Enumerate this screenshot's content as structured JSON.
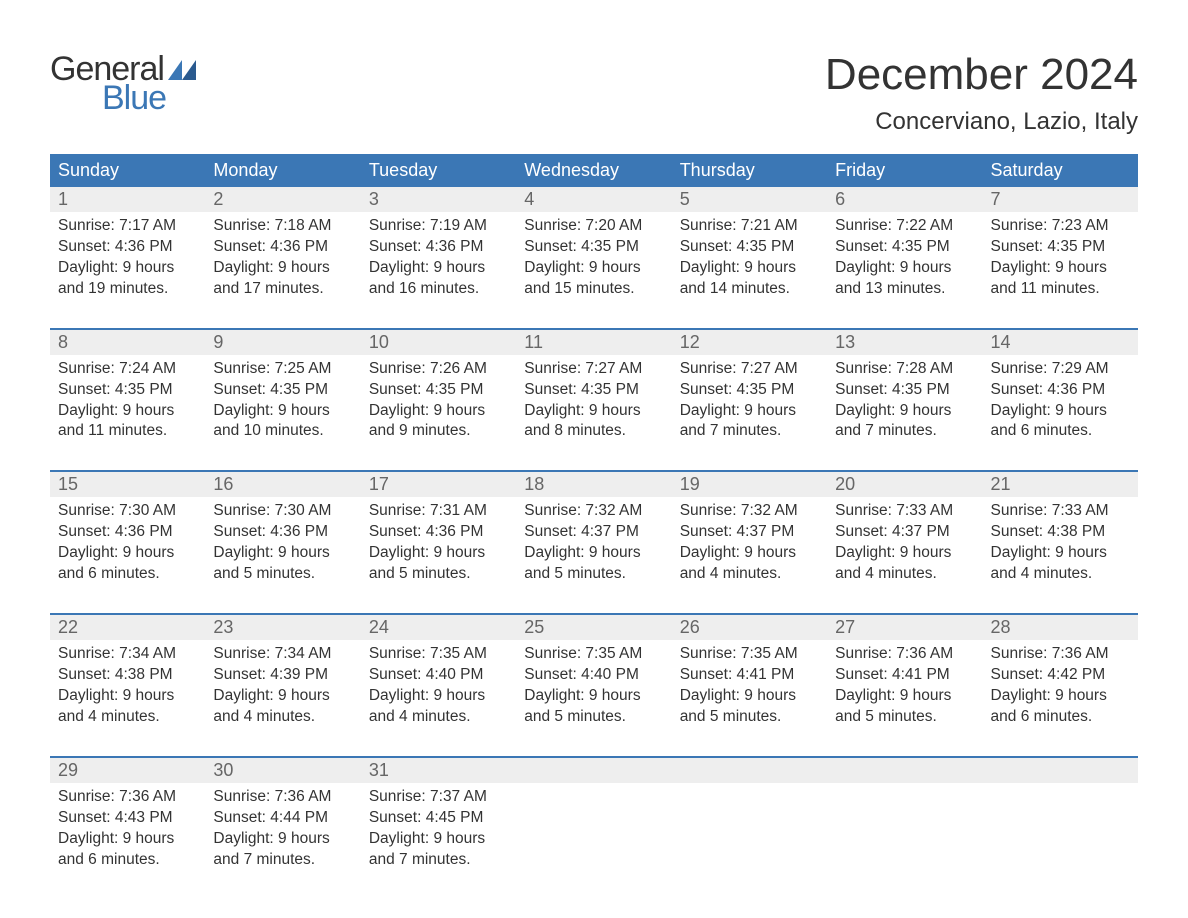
{
  "logo": {
    "word1": "General",
    "word2": "Blue",
    "flag_color": "#3b77b5"
  },
  "title": "December 2024",
  "location": "Concerviano, Lazio, Italy",
  "colors": {
    "header_bg": "#3b77b5",
    "header_text": "#ffffff",
    "daynum_bg": "#eeeeee",
    "daynum_text": "#666666",
    "body_text": "#333333",
    "page_bg": "#ffffff",
    "divider": "#3b77b5"
  },
  "typography": {
    "title_fontsize": 44,
    "location_fontsize": 24,
    "header_fontsize": 18,
    "daynum_fontsize": 18,
    "cell_fontsize": 15.5,
    "logo_fontsize": 34
  },
  "day_headers": [
    "Sunday",
    "Monday",
    "Tuesday",
    "Wednesday",
    "Thursday",
    "Friday",
    "Saturday"
  ],
  "weeks": [
    [
      {
        "num": "1",
        "sunrise": "Sunrise: 7:17 AM",
        "sunset": "Sunset: 4:36 PM",
        "dl1": "Daylight: 9 hours",
        "dl2": "and 19 minutes."
      },
      {
        "num": "2",
        "sunrise": "Sunrise: 7:18 AM",
        "sunset": "Sunset: 4:36 PM",
        "dl1": "Daylight: 9 hours",
        "dl2": "and 17 minutes."
      },
      {
        "num": "3",
        "sunrise": "Sunrise: 7:19 AM",
        "sunset": "Sunset: 4:36 PM",
        "dl1": "Daylight: 9 hours",
        "dl2": "and 16 minutes."
      },
      {
        "num": "4",
        "sunrise": "Sunrise: 7:20 AM",
        "sunset": "Sunset: 4:35 PM",
        "dl1": "Daylight: 9 hours",
        "dl2": "and 15 minutes."
      },
      {
        "num": "5",
        "sunrise": "Sunrise: 7:21 AM",
        "sunset": "Sunset: 4:35 PM",
        "dl1": "Daylight: 9 hours",
        "dl2": "and 14 minutes."
      },
      {
        "num": "6",
        "sunrise": "Sunrise: 7:22 AM",
        "sunset": "Sunset: 4:35 PM",
        "dl1": "Daylight: 9 hours",
        "dl2": "and 13 minutes."
      },
      {
        "num": "7",
        "sunrise": "Sunrise: 7:23 AM",
        "sunset": "Sunset: 4:35 PM",
        "dl1": "Daylight: 9 hours",
        "dl2": "and 11 minutes."
      }
    ],
    [
      {
        "num": "8",
        "sunrise": "Sunrise: 7:24 AM",
        "sunset": "Sunset: 4:35 PM",
        "dl1": "Daylight: 9 hours",
        "dl2": "and 11 minutes."
      },
      {
        "num": "9",
        "sunrise": "Sunrise: 7:25 AM",
        "sunset": "Sunset: 4:35 PM",
        "dl1": "Daylight: 9 hours",
        "dl2": "and 10 minutes."
      },
      {
        "num": "10",
        "sunrise": "Sunrise: 7:26 AM",
        "sunset": "Sunset: 4:35 PM",
        "dl1": "Daylight: 9 hours",
        "dl2": "and 9 minutes."
      },
      {
        "num": "11",
        "sunrise": "Sunrise: 7:27 AM",
        "sunset": "Sunset: 4:35 PM",
        "dl1": "Daylight: 9 hours",
        "dl2": "and 8 minutes."
      },
      {
        "num": "12",
        "sunrise": "Sunrise: 7:27 AM",
        "sunset": "Sunset: 4:35 PM",
        "dl1": "Daylight: 9 hours",
        "dl2": "and 7 minutes."
      },
      {
        "num": "13",
        "sunrise": "Sunrise: 7:28 AM",
        "sunset": "Sunset: 4:35 PM",
        "dl1": "Daylight: 9 hours",
        "dl2": "and 7 minutes."
      },
      {
        "num": "14",
        "sunrise": "Sunrise: 7:29 AM",
        "sunset": "Sunset: 4:36 PM",
        "dl1": "Daylight: 9 hours",
        "dl2": "and 6 minutes."
      }
    ],
    [
      {
        "num": "15",
        "sunrise": "Sunrise: 7:30 AM",
        "sunset": "Sunset: 4:36 PM",
        "dl1": "Daylight: 9 hours",
        "dl2": "and 6 minutes."
      },
      {
        "num": "16",
        "sunrise": "Sunrise: 7:30 AM",
        "sunset": "Sunset: 4:36 PM",
        "dl1": "Daylight: 9 hours",
        "dl2": "and 5 minutes."
      },
      {
        "num": "17",
        "sunrise": "Sunrise: 7:31 AM",
        "sunset": "Sunset: 4:36 PM",
        "dl1": "Daylight: 9 hours",
        "dl2": "and 5 minutes."
      },
      {
        "num": "18",
        "sunrise": "Sunrise: 7:32 AM",
        "sunset": "Sunset: 4:37 PM",
        "dl1": "Daylight: 9 hours",
        "dl2": "and 5 minutes."
      },
      {
        "num": "19",
        "sunrise": "Sunrise: 7:32 AM",
        "sunset": "Sunset: 4:37 PM",
        "dl1": "Daylight: 9 hours",
        "dl2": "and 4 minutes."
      },
      {
        "num": "20",
        "sunrise": "Sunrise: 7:33 AM",
        "sunset": "Sunset: 4:37 PM",
        "dl1": "Daylight: 9 hours",
        "dl2": "and 4 minutes."
      },
      {
        "num": "21",
        "sunrise": "Sunrise: 7:33 AM",
        "sunset": "Sunset: 4:38 PM",
        "dl1": "Daylight: 9 hours",
        "dl2": "and 4 minutes."
      }
    ],
    [
      {
        "num": "22",
        "sunrise": "Sunrise: 7:34 AM",
        "sunset": "Sunset: 4:38 PM",
        "dl1": "Daylight: 9 hours",
        "dl2": "and 4 minutes."
      },
      {
        "num": "23",
        "sunrise": "Sunrise: 7:34 AM",
        "sunset": "Sunset: 4:39 PM",
        "dl1": "Daylight: 9 hours",
        "dl2": "and 4 minutes."
      },
      {
        "num": "24",
        "sunrise": "Sunrise: 7:35 AM",
        "sunset": "Sunset: 4:40 PM",
        "dl1": "Daylight: 9 hours",
        "dl2": "and 4 minutes."
      },
      {
        "num": "25",
        "sunrise": "Sunrise: 7:35 AM",
        "sunset": "Sunset: 4:40 PM",
        "dl1": "Daylight: 9 hours",
        "dl2": "and 5 minutes."
      },
      {
        "num": "26",
        "sunrise": "Sunrise: 7:35 AM",
        "sunset": "Sunset: 4:41 PM",
        "dl1": "Daylight: 9 hours",
        "dl2": "and 5 minutes."
      },
      {
        "num": "27",
        "sunrise": "Sunrise: 7:36 AM",
        "sunset": "Sunset: 4:41 PM",
        "dl1": "Daylight: 9 hours",
        "dl2": "and 5 minutes."
      },
      {
        "num": "28",
        "sunrise": "Sunrise: 7:36 AM",
        "sunset": "Sunset: 4:42 PM",
        "dl1": "Daylight: 9 hours",
        "dl2": "and 6 minutes."
      }
    ],
    [
      {
        "num": "29",
        "sunrise": "Sunrise: 7:36 AM",
        "sunset": "Sunset: 4:43 PM",
        "dl1": "Daylight: 9 hours",
        "dl2": "and 6 minutes."
      },
      {
        "num": "30",
        "sunrise": "Sunrise: 7:36 AM",
        "sunset": "Sunset: 4:44 PM",
        "dl1": "Daylight: 9 hours",
        "dl2": "and 7 minutes."
      },
      {
        "num": "31",
        "sunrise": "Sunrise: 7:37 AM",
        "sunset": "Sunset: 4:45 PM",
        "dl1": "Daylight: 9 hours",
        "dl2": "and 7 minutes."
      },
      null,
      null,
      null,
      null
    ]
  ]
}
